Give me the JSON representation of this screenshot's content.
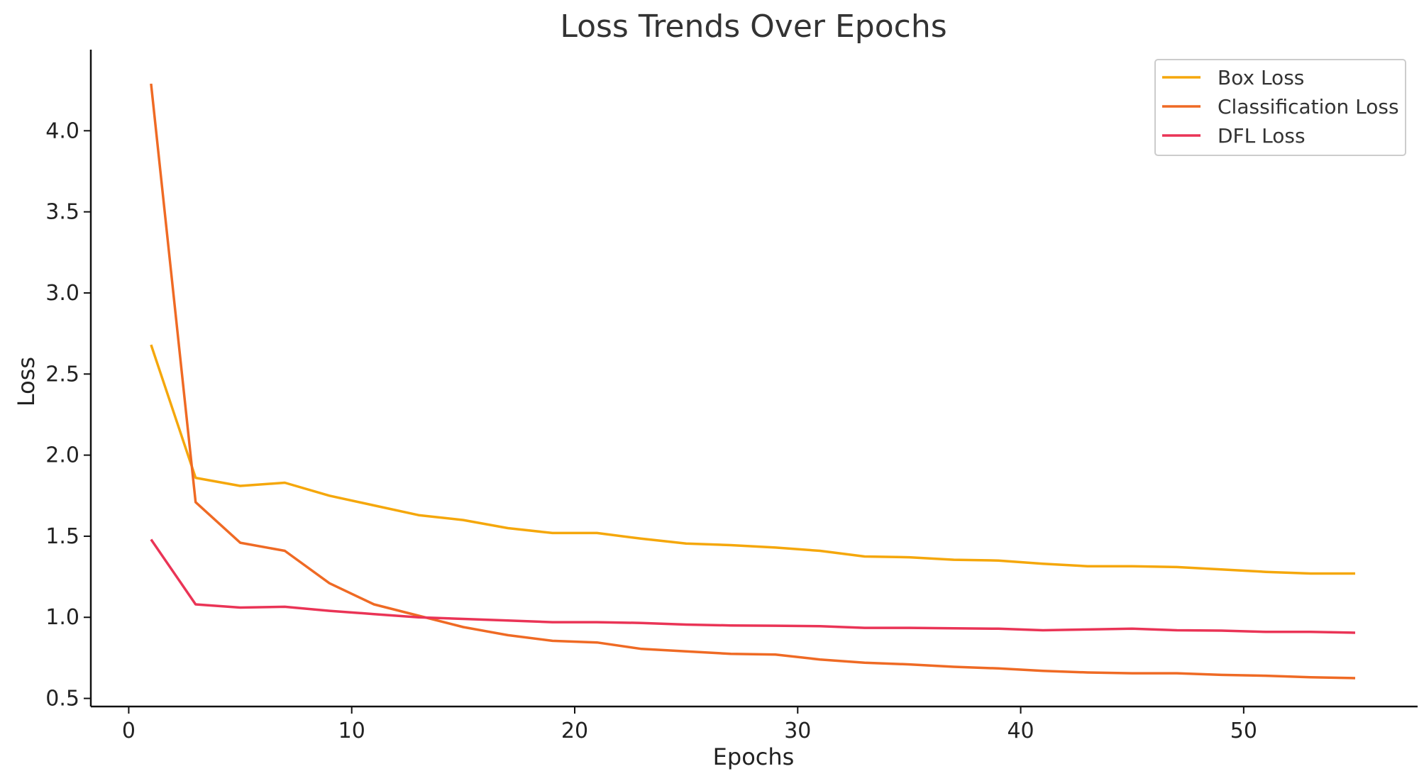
{
  "chart_data": {
    "type": "line",
    "title": "Loss Trends Over Epochs",
    "xlabel": "Epochs",
    "ylabel": "Loss",
    "xlim": [
      -1.7,
      57.8
    ],
    "ylim": [
      0.45,
      4.5
    ],
    "xticks": [
      0,
      10,
      20,
      30,
      40,
      50
    ],
    "xtick_labels": [
      "0",
      "10",
      "20",
      "30",
      "40",
      "50"
    ],
    "yticks": [
      0.5,
      1.0,
      1.5,
      2.0,
      2.5,
      3.0,
      3.5,
      4.0
    ],
    "ytick_labels": [
      "0.5",
      "1.0",
      "1.5",
      "2.0",
      "2.5",
      "3.0",
      "3.5",
      "4.0"
    ],
    "grid": false,
    "legend_position": "top-right",
    "x": [
      1,
      3,
      5,
      7,
      9,
      11,
      13,
      15,
      17,
      19,
      21,
      23,
      25,
      27,
      29,
      31,
      33,
      35,
      37,
      39,
      41,
      43,
      45,
      47,
      49,
      51,
      53,
      55
    ],
    "series": [
      {
        "name": "Box Loss",
        "color": "#f5a70b",
        "values": [
          2.68,
          1.86,
          1.81,
          1.83,
          1.75,
          1.69,
          1.63,
          1.6,
          1.55,
          1.52,
          1.52,
          1.485,
          1.455,
          1.445,
          1.43,
          1.41,
          1.375,
          1.37,
          1.355,
          1.35,
          1.33,
          1.315,
          1.315,
          1.31,
          1.295,
          1.28,
          1.27,
          1.27
        ]
      },
      {
        "name": "Classification Loss",
        "color": "#ef6a24",
        "values": [
          4.29,
          1.71,
          1.46,
          1.41,
          1.21,
          1.08,
          1.01,
          0.94,
          0.89,
          0.855,
          0.845,
          0.805,
          0.79,
          0.775,
          0.77,
          0.74,
          0.72,
          0.71,
          0.695,
          0.685,
          0.67,
          0.66,
          0.655,
          0.655,
          0.645,
          0.64,
          0.63,
          0.625
        ]
      },
      {
        "name": "DFL Loss",
        "color": "#ea3456",
        "values": [
          1.48,
          1.08,
          1.06,
          1.065,
          1.04,
          1.02,
          1.0,
          0.99,
          0.98,
          0.97,
          0.97,
          0.965,
          0.955,
          0.95,
          0.948,
          0.945,
          0.935,
          0.935,
          0.932,
          0.93,
          0.92,
          0.925,
          0.93,
          0.92,
          0.918,
          0.91,
          0.91,
          0.905
        ]
      }
    ]
  }
}
